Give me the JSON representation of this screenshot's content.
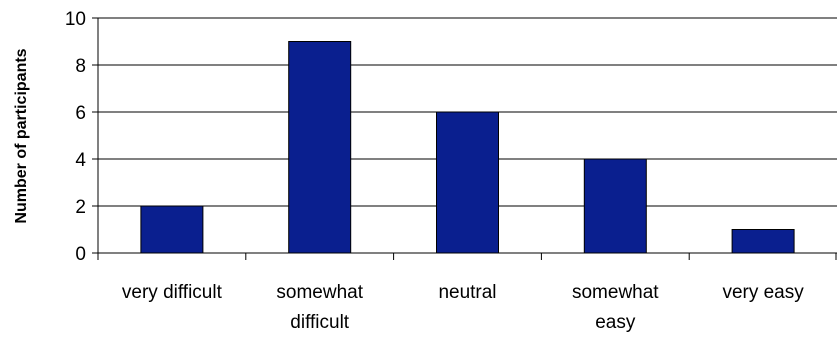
{
  "chart_data": {
    "type": "bar",
    "categories": [
      [
        "very difficult"
      ],
      [
        "somewhat",
        "difficult"
      ],
      [
        "neutral"
      ],
      [
        "somewhat",
        "easy"
      ],
      [
        "very easy"
      ]
    ],
    "values": [
      2,
      9,
      6,
      4,
      1
    ],
    "ylabel": "Number of participants",
    "ylim": [
      0,
      10
    ],
    "yticks": [
      0,
      2,
      4,
      6,
      8,
      10
    ],
    "grid": true,
    "colors": {
      "bar": "#0a1f8f",
      "bar_stroke": "#000000",
      "grid": "#000000",
      "axis": "#000000"
    }
  }
}
